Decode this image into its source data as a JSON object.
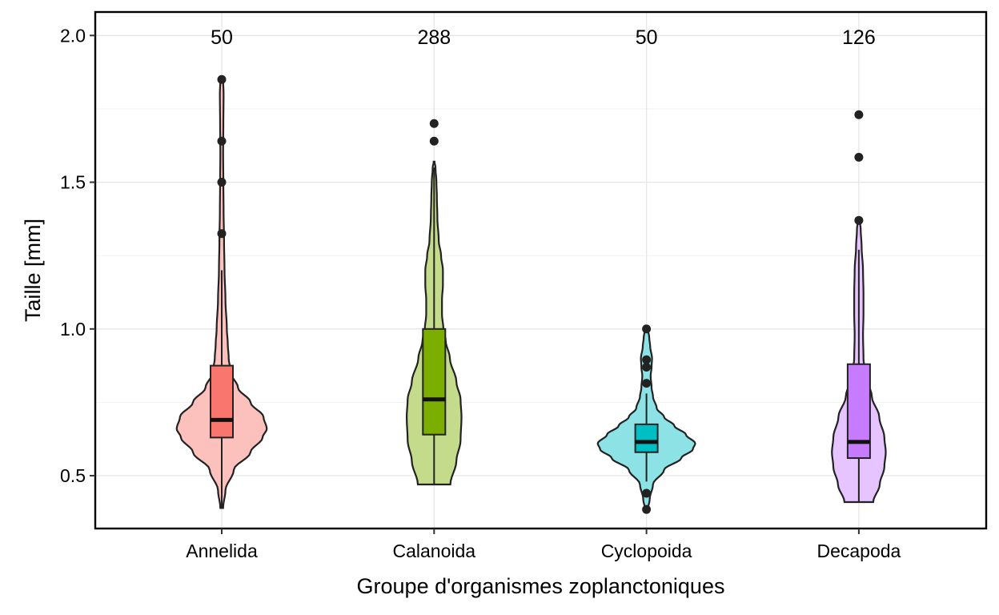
{
  "chart_data": {
    "type": "violin",
    "xlabel": "Groupe d'organismes zoplanctoniques",
    "ylabel": "Taille [mm]",
    "ylim": [
      0.32,
      2.08
    ],
    "yticks": [
      "0.5",
      "1.0",
      "1.5",
      "2.0"
    ],
    "grid": true,
    "legend": "none",
    "categories": [
      "Annelida",
      "Calanoida",
      "Cyclopoida",
      "Decapoda"
    ],
    "groups": [
      {
        "name": "Annelida",
        "count": "50",
        "color": "#F8766D",
        "box": {
          "lower_whisker": 0.39,
          "q1": 0.63,
          "median": 0.69,
          "q3": 0.875,
          "upper_whisker": 1.2
        },
        "outliers": [
          1.325,
          1.5,
          1.64,
          1.85
        ],
        "density": [
          [
            0.39,
            0.03
          ],
          [
            0.45,
            0.08
          ],
          [
            0.52,
            0.26
          ],
          [
            0.58,
            0.62
          ],
          [
            0.63,
            0.88
          ],
          [
            0.66,
            0.97
          ],
          [
            0.7,
            0.9
          ],
          [
            0.75,
            0.62
          ],
          [
            0.8,
            0.35
          ],
          [
            0.85,
            0.2
          ],
          [
            0.9,
            0.15
          ],
          [
            0.95,
            0.13
          ],
          [
            1.0,
            0.11
          ],
          [
            1.1,
            0.08
          ],
          [
            1.2,
            0.06
          ],
          [
            1.3,
            0.05
          ],
          [
            1.4,
            0.04
          ],
          [
            1.5,
            0.035
          ],
          [
            1.6,
            0.03
          ],
          [
            1.7,
            0.035
          ],
          [
            1.8,
            0.04
          ],
          [
            1.85,
            0.03
          ]
        ]
      },
      {
        "name": "Calanoida",
        "count": "288",
        "color": "#7CAE00",
        "box": {
          "lower_whisker": 0.47,
          "q1": 0.64,
          "median": 0.76,
          "q3": 1.0,
          "upper_whisker": 1.55
        },
        "outliers": [
          1.64,
          1.7
        ],
        "density": [
          [
            0.47,
            0.35
          ],
          [
            0.55,
            0.48
          ],
          [
            0.62,
            0.57
          ],
          [
            0.7,
            0.59
          ],
          [
            0.76,
            0.57
          ],
          [
            0.82,
            0.48
          ],
          [
            0.9,
            0.34
          ],
          [
            0.96,
            0.25
          ],
          [
            1.0,
            0.2
          ],
          [
            1.05,
            0.17
          ],
          [
            1.1,
            0.17
          ],
          [
            1.15,
            0.19
          ],
          [
            1.2,
            0.19
          ],
          [
            1.25,
            0.15
          ],
          [
            1.3,
            0.1
          ],
          [
            1.38,
            0.07
          ],
          [
            1.45,
            0.06
          ],
          [
            1.5,
            0.05
          ],
          [
            1.55,
            0.03
          ],
          [
            1.57,
            0.01
          ]
        ]
      },
      {
        "name": "Cyclopoida",
        "count": "50",
        "color": "#00BFC4",
        "box": {
          "lower_whisker": 0.48,
          "q1": 0.58,
          "median": 0.615,
          "q3": 0.675,
          "upper_whisker": 0.78
        },
        "outliers": [
          0.385,
          0.44,
          0.815,
          0.87,
          0.895,
          1.0
        ],
        "density": [
          [
            0.385,
            0.03
          ],
          [
            0.42,
            0.07
          ],
          [
            0.47,
            0.14
          ],
          [
            0.52,
            0.38
          ],
          [
            0.56,
            0.75
          ],
          [
            0.59,
            1.0
          ],
          [
            0.61,
            1.05
          ],
          [
            0.64,
            0.85
          ],
          [
            0.67,
            0.6
          ],
          [
            0.7,
            0.38
          ],
          [
            0.73,
            0.22
          ],
          [
            0.77,
            0.14
          ],
          [
            0.8,
            0.11
          ],
          [
            0.84,
            0.09
          ],
          [
            0.87,
            0.11
          ],
          [
            0.9,
            0.12
          ],
          [
            0.94,
            0.08
          ],
          [
            0.97,
            0.06
          ],
          [
            1.0,
            0.03
          ]
        ]
      },
      {
        "name": "Decapoda",
        "count": "126",
        "color": "#C77CFF",
        "box": {
          "lower_whisker": 0.41,
          "q1": 0.56,
          "median": 0.615,
          "q3": 0.88,
          "upper_whisker": 1.27
        },
        "outliers": [
          1.37,
          1.585,
          1.73
        ],
        "density": [
          [
            0.41,
            0.31
          ],
          [
            0.47,
            0.45
          ],
          [
            0.53,
            0.55
          ],
          [
            0.58,
            0.58
          ],
          [
            0.63,
            0.55
          ],
          [
            0.7,
            0.44
          ],
          [
            0.77,
            0.28
          ],
          [
            0.84,
            0.15
          ],
          [
            0.9,
            0.1
          ],
          [
            0.98,
            0.09
          ],
          [
            1.05,
            0.1
          ],
          [
            1.12,
            0.1
          ],
          [
            1.2,
            0.09
          ],
          [
            1.28,
            0.06
          ],
          [
            1.34,
            0.04
          ],
          [
            1.37,
            0.02
          ]
        ]
      }
    ]
  }
}
